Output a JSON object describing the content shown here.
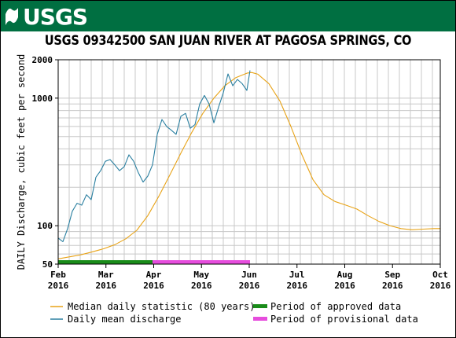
{
  "header": {
    "logo_text": "USGS",
    "title": "USGS 09342500 SAN JUAN RIVER AT PAGOSA SPRINGS, CO"
  },
  "colors": {
    "banner": "#006f41",
    "median": "#e8a317",
    "daily": "#2a7fa0",
    "approved": "#1a8c1a",
    "provisional": "#e64ddd",
    "grid": "#c8c8c8"
  },
  "chart_data": {
    "type": "line",
    "ylabel": "DAILY Discharge, cubic feet per second",
    "yscale": "log",
    "ylim": [
      50,
      2000
    ],
    "y_ticks": [
      "50",
      "100",
      "1000",
      "2000"
    ],
    "x_ticks": [
      {
        "month": "Feb",
        "year": "2016"
      },
      {
        "month": "Mar",
        "year": "2016"
      },
      {
        "month": "Apr",
        "year": "2016"
      },
      {
        "month": "May",
        "year": "2016"
      },
      {
        "month": "Jun",
        "year": "2016"
      },
      {
        "month": "Jul",
        "year": "2016"
      },
      {
        "month": "Aug",
        "year": "2016"
      },
      {
        "month": "Sep",
        "year": "2016"
      },
      {
        "month": "Oct",
        "year": "2016"
      }
    ],
    "xlim": [
      "2016-02-01",
      "2016-10-01"
    ],
    "series": [
      {
        "name": "Median daily statistic (80 years)",
        "x": [
          "2016-02-01",
          "2016-02-08",
          "2016-02-15",
          "2016-02-22",
          "2016-03-01",
          "2016-03-08",
          "2016-03-15",
          "2016-03-22",
          "2016-03-29",
          "2016-04-05",
          "2016-04-12",
          "2016-04-19",
          "2016-04-26",
          "2016-05-03",
          "2016-05-10",
          "2016-05-17",
          "2016-05-24",
          "2016-05-31",
          "2016-06-03",
          "2016-06-07",
          "2016-06-14",
          "2016-06-21",
          "2016-06-28",
          "2016-07-05",
          "2016-07-12",
          "2016-07-19",
          "2016-07-26",
          "2016-08-02",
          "2016-08-09",
          "2016-08-16",
          "2016-08-23",
          "2016-08-30",
          "2016-09-06",
          "2016-09-13",
          "2016-09-20",
          "2016-09-27",
          "2016-10-01"
        ],
        "y": [
          55,
          57,
          59,
          62,
          66,
          71,
          79,
          92,
          120,
          170,
          250,
          370,
          540,
          760,
          1000,
          1250,
          1450,
          1570,
          1590,
          1540,
          1300,
          950,
          600,
          360,
          230,
          175,
          155,
          145,
          135,
          120,
          108,
          100,
          95,
          93,
          94,
          95,
          95
        ]
      },
      {
        "name": "Daily mean discharge",
        "x": [
          "2016-02-01",
          "2016-02-04",
          "2016-02-07",
          "2016-02-10",
          "2016-02-13",
          "2016-02-16",
          "2016-02-19",
          "2016-02-22",
          "2016-02-25",
          "2016-02-28",
          "2016-03-02",
          "2016-03-05",
          "2016-03-08",
          "2016-03-11",
          "2016-03-14",
          "2016-03-17",
          "2016-03-20",
          "2016-03-23",
          "2016-03-26",
          "2016-03-29",
          "2016-04-01",
          "2016-04-04",
          "2016-04-07",
          "2016-04-10",
          "2016-04-13",
          "2016-04-16",
          "2016-04-19",
          "2016-04-22",
          "2016-04-25",
          "2016-04-28",
          "2016-05-01",
          "2016-05-04",
          "2016-05-07",
          "2016-05-10",
          "2016-05-13",
          "2016-05-16",
          "2016-05-19",
          "2016-05-22",
          "2016-05-25",
          "2016-05-28",
          "2016-05-31",
          "2016-06-02"
        ],
        "y": [
          80,
          75,
          95,
          130,
          150,
          145,
          175,
          160,
          240,
          270,
          320,
          330,
          300,
          270,
          290,
          360,
          320,
          260,
          220,
          245,
          300,
          520,
          680,
          600,
          560,
          520,
          720,
          760,
          580,
          620,
          900,
          1050,
          900,
          640,
          850,
          1100,
          1550,
          1250,
          1400,
          1300,
          1150,
          1650
        ]
      }
    ],
    "legend": [
      {
        "label": "Median daily statistic (80 years)",
        "kind": "line",
        "color": "#e8a317"
      },
      {
        "label": "Daily mean discharge",
        "kind": "line",
        "color": "#2a7fa0"
      },
      {
        "label": "Period of approved data",
        "kind": "bar",
        "color": "#1a8c1a"
      },
      {
        "label": "Period of provisional data",
        "kind": "bar",
        "color": "#e64ddd"
      }
    ],
    "periods": [
      {
        "name": "Period of approved data",
        "start": "2016-02-01",
        "end": "2016-04-01"
      },
      {
        "name": "Period of provisional data",
        "start": "2016-04-01",
        "end": "2016-06-02"
      }
    ],
    "grid": true
  }
}
